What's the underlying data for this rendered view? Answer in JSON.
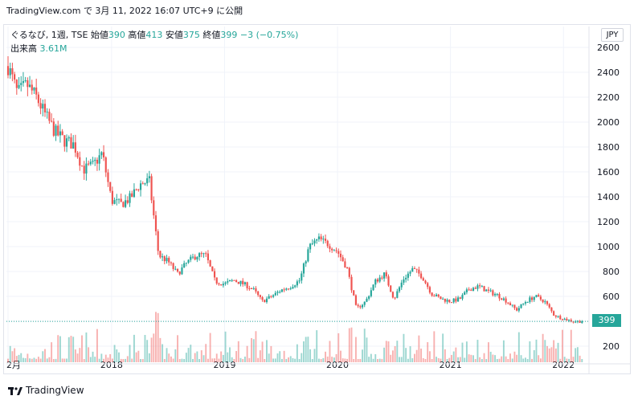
{
  "header": {
    "text": "TradingView.com で 3月 11, 2022 16:07 UTC+9 に公開"
  },
  "legend": {
    "symbol": "ぐるなび, 1週, TSE",
    "open_label": "始値",
    "open": "390",
    "high_label": "高値",
    "high": "413",
    "low_label": "安値",
    "low": "375",
    "close_label": "終値",
    "close": "399",
    "change": "−3 (−0.75%)",
    "volume_label": "出来高",
    "volume": "3.61M"
  },
  "currency": "JPY",
  "last_price": "399",
  "footer": {
    "brand": "TradingView"
  },
  "colors": {
    "up": "#26a69a",
    "down": "#ef5350",
    "grid": "#f0f3fa",
    "text": "#131722"
  },
  "chart_data": {
    "type": "candlestick",
    "interval": "1W",
    "ylim": [
      100,
      2650
    ],
    "y_ticks": [
      200,
      400,
      600,
      800,
      1000,
      1200,
      1400,
      1600,
      1800,
      2000,
      2200,
      2400,
      2600
    ],
    "y_tick_labels": [
      "200",
      "",
      "600",
      "800",
      "1000",
      "1200",
      "1400",
      "1600",
      "1800",
      "2000",
      "2200",
      "2400",
      "2600"
    ],
    "x_ticks": [
      "2月",
      "2018",
      "2019",
      "2020",
      "2021",
      "2022"
    ],
    "x_tick_dates": [
      "2017-02",
      "2018-01",
      "2019-01",
      "2020-01",
      "2021-01",
      "2022-01"
    ],
    "last_close": 399,
    "x_range": [
      "2017-02",
      "2022-03"
    ],
    "price_path": [
      [
        "2017-02",
        2450
      ],
      [
        "2017-03",
        2230
      ],
      [
        "2017-04",
        2300
      ],
      [
        "2017-05",
        2200
      ],
      [
        "2017-06",
        2050
      ],
      [
        "2017-07",
        1920
      ],
      [
        "2017-08",
        1850
      ],
      [
        "2017-09",
        1820
      ],
      [
        "2017-10",
        1620
      ],
      [
        "2017-11",
        1650
      ],
      [
        "2017-12",
        1750
      ],
      [
        "2018-01",
        1370
      ],
      [
        "2018-02",
        1340
      ],
      [
        "2018-03",
        1390
      ],
      [
        "2018-04",
        1500
      ],
      [
        "2018-05",
        1530
      ],
      [
        "2018-06",
        930
      ],
      [
        "2018-07",
        880
      ],
      [
        "2018-08",
        780
      ],
      [
        "2018-09",
        870
      ],
      [
        "2018-10",
        930
      ],
      [
        "2018-11",
        930
      ],
      [
        "2018-12",
        720
      ],
      [
        "2019-01",
        700
      ],
      [
        "2019-02",
        730
      ],
      [
        "2019-03",
        700
      ],
      [
        "2019-04",
        660
      ],
      [
        "2019-05",
        560
      ],
      [
        "2019-06",
        600
      ],
      [
        "2019-07",
        650
      ],
      [
        "2019-08",
        680
      ],
      [
        "2019-09",
        730
      ],
      [
        "2019-10",
        1000
      ],
      [
        "2019-11",
        1060
      ],
      [
        "2019-12",
        1020
      ],
      [
        "2020-01",
        960
      ],
      [
        "2020-02",
        830
      ],
      [
        "2020-03",
        500
      ],
      [
        "2020-04",
        560
      ],
      [
        "2020-05",
        720
      ],
      [
        "2020-06",
        780
      ],
      [
        "2020-07",
        580
      ],
      [
        "2020-08",
        740
      ],
      [
        "2020-09",
        820
      ],
      [
        "2020-10",
        760
      ],
      [
        "2020-11",
        620
      ],
      [
        "2020-12",
        580
      ],
      [
        "2021-01",
        560
      ],
      [
        "2021-02",
        580
      ],
      [
        "2021-03",
        660
      ],
      [
        "2021-04",
        680
      ],
      [
        "2021-05",
        640
      ],
      [
        "2021-06",
        610
      ],
      [
        "2021-07",
        560
      ],
      [
        "2021-08",
        490
      ],
      [
        "2021-09",
        560
      ],
      [
        "2021-10",
        600
      ],
      [
        "2021-11",
        560
      ],
      [
        "2021-12",
        450
      ],
      [
        "2022-01",
        420
      ],
      [
        "2022-02",
        400
      ],
      [
        "2022-03",
        399
      ]
    ]
  }
}
